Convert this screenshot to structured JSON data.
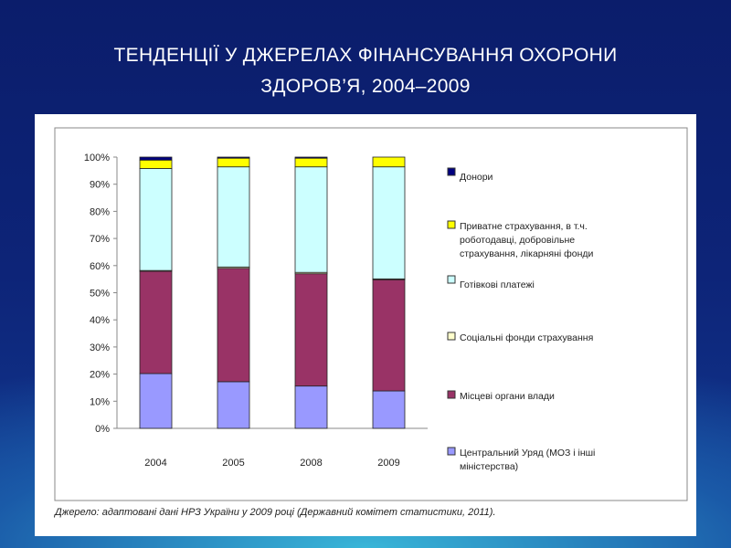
{
  "title_line1": "ТЕНДЕНЦІЇ У ДЖЕРЕЛАХ ФІНАНСУВАННЯ ОХОРОНИ",
  "title_line2": "ЗДОРОВ’Я,  2004–2009",
  "source": "Джерело: адаптовані дані НРЗ України у 2009 році (Державний комітет статистики, 2011).",
  "chart_data": {
    "type": "bar",
    "stacked": true,
    "categories": [
      "2004",
      "2005",
      "2008",
      "2009"
    ],
    "ylim": [
      0,
      100
    ],
    "yticks": [
      "0%",
      "10%",
      "20%",
      "30%",
      "40%",
      "50%",
      "60%",
      "70%",
      "80%",
      "90%",
      "100%"
    ],
    "legend_position": "right",
    "series": [
      {
        "name": "Центральний Уряд (МОЗ і інші міністерства)",
        "legend_lines": [
          "Центральний Уряд (МОЗ і інші",
          "міністерства)"
        ],
        "color": "#9999ff",
        "values": [
          20.2,
          17.2,
          15.6,
          13.8
        ]
      },
      {
        "name": "Місцеві органи влади",
        "legend_lines": [
          "Місцеві органи влади"
        ],
        "color": "#993366",
        "values": [
          37.7,
          41.8,
          41.4,
          41.0
        ]
      },
      {
        "name": "Соціальні фонди страхування",
        "legend_lines": [
          "Соціальні фонди страхування"
        ],
        "color": "#ffffcc",
        "values": [
          0.3,
          0.5,
          0.5,
          0.3
        ]
      },
      {
        "name": "Готівкові платежі",
        "legend_lines": [
          "Готівкові платежі"
        ],
        "color": "#ccffff",
        "values": [
          37.6,
          36.9,
          38.9,
          41.3
        ]
      },
      {
        "name": "Приватне страхування, в т.ч. роботодавці, добровільне страхування, лікарняні фонди",
        "legend_lines": [
          "Приватне страхування, в т.ч.",
          "роботодавці, добровільне",
          "страхування, лікарняні фонди"
        ],
        "color": "#ffff00",
        "values": [
          3.1,
          3.2,
          3.2,
          3.6
        ]
      },
      {
        "name": "Донори",
        "legend_lines": [
          "Донори"
        ],
        "color": "#000080",
        "values": [
          1.1,
          0.4,
          0.4,
          0.0
        ]
      }
    ]
  }
}
